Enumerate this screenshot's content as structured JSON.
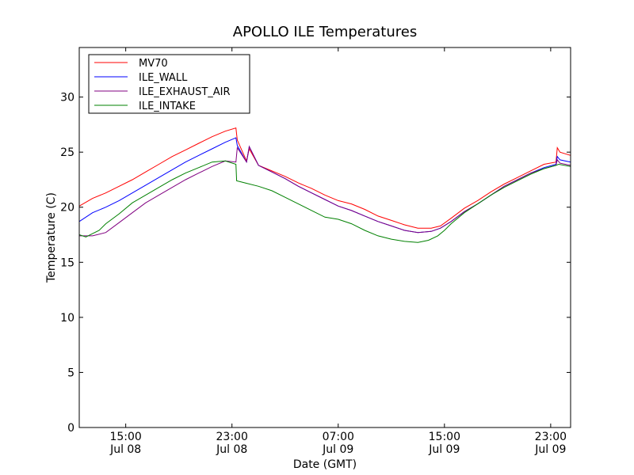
{
  "chart_data": {
    "type": "line",
    "title": "APOLLO ILE Temperatures",
    "xlabel": "Date (GMT)",
    "ylabel": "Temperature (C)",
    "x_unit": "hours since Jul 08 11:00 GMT",
    "xlim": [
      0,
      37
    ],
    "ylim": [
      0,
      34.5
    ],
    "y_ticks": [
      0,
      5,
      10,
      15,
      20,
      25,
      30
    ],
    "x_ticks": [
      {
        "x": 3.5,
        "time": "15:00",
        "date": "Jul 08"
      },
      {
        "x": 11.5,
        "time": "23:00",
        "date": "Jul 08"
      },
      {
        "x": 19.5,
        "time": "07:00",
        "date": "Jul 09"
      },
      {
        "x": 27.5,
        "time": "15:00",
        "date": "Jul 09"
      },
      {
        "x": 35.5,
        "time": "23:00",
        "date": "Jul 09"
      }
    ],
    "legend_position": "top-left",
    "series": [
      {
        "name": "MV70",
        "color": "#ff0000",
        "x": [
          0,
          1,
          2,
          3,
          4,
          5,
          6,
          7,
          8,
          9,
          10,
          11,
          11.8,
          11.9,
          12.6,
          12.8,
          13.5,
          14.5,
          15.5,
          16.5,
          17.5,
          18.5,
          19.5,
          20.5,
          21.5,
          22.5,
          23.5,
          24.5,
          25.5,
          26.5,
          27.2,
          28,
          29,
          30,
          31,
          32,
          33,
          34,
          35,
          35.9,
          36.0,
          36.2,
          37
        ],
        "values": [
          20.1,
          20.8,
          21.3,
          21.9,
          22.5,
          23.2,
          23.9,
          24.6,
          25.2,
          25.8,
          26.4,
          26.9,
          27.2,
          26.1,
          24.2,
          25.3,
          23.8,
          23.3,
          22.8,
          22.2,
          21.7,
          21.1,
          20.6,
          20.3,
          19.8,
          19.2,
          18.8,
          18.4,
          18.1,
          18.1,
          18.3,
          19.0,
          19.9,
          20.6,
          21.4,
          22.1,
          22.7,
          23.3,
          23.9,
          24.1,
          25.4,
          25.0,
          24.7
        ]
      },
      {
        "name": "ILE_WALL",
        "color": "#0000ff",
        "x": [
          0,
          1,
          2,
          3,
          4,
          5,
          6,
          7,
          8,
          9,
          10,
          11,
          11.8,
          11.9,
          12.6,
          12.8,
          13.5,
          14.5,
          15.5,
          16.5,
          17.5,
          18.5,
          19.5,
          20.5,
          21.5,
          22.5,
          23.5,
          24.5,
          25.5,
          26.5,
          27.2,
          28,
          29,
          30,
          31,
          32,
          33,
          34,
          35,
          35.9,
          36.0,
          36.2,
          37
        ],
        "values": [
          18.7,
          19.5,
          20.0,
          20.6,
          21.3,
          22.0,
          22.7,
          23.4,
          24.1,
          24.7,
          25.3,
          25.9,
          26.3,
          25.6,
          24.1,
          25.5,
          23.8,
          23.2,
          22.6,
          21.9,
          21.3,
          20.7,
          20.1,
          19.7,
          19.2,
          18.7,
          18.3,
          17.9,
          17.7,
          17.8,
          18.1,
          18.7,
          19.6,
          20.3,
          21.1,
          21.9,
          22.5,
          23.1,
          23.6,
          23.9,
          24.6,
          24.3,
          24.1
        ]
      },
      {
        "name": "ILE_EXHAUST_AIR",
        "color": "#800080",
        "x": [
          0,
          1,
          2,
          3,
          4,
          5,
          6,
          7,
          8,
          9,
          10,
          11,
          11.8,
          11.9,
          12.6,
          12.8,
          13.5,
          14.5,
          15.5,
          16.5,
          17.5,
          18.5,
          19.5,
          20.5,
          21.5,
          22.5,
          23.5,
          24.5,
          25.5,
          26.5,
          27.2,
          28,
          29,
          30,
          31,
          32,
          33,
          34,
          35,
          35.9,
          36.0,
          36.2,
          37
        ],
        "values": [
          17.4,
          17.4,
          17.7,
          18.6,
          19.5,
          20.4,
          21.1,
          21.8,
          22.5,
          23.1,
          23.7,
          24.2,
          24.1,
          25.4,
          24.1,
          25.5,
          23.8,
          23.2,
          22.6,
          21.9,
          21.3,
          20.7,
          20.1,
          19.7,
          19.2,
          18.7,
          18.3,
          17.9,
          17.7,
          17.8,
          18.1,
          18.7,
          19.6,
          20.3,
          21.1,
          21.9,
          22.5,
          23.1,
          23.5,
          23.8,
          24.3,
          24.0,
          23.8
        ]
      },
      {
        "name": "ILE_INTAKE",
        "color": "#008000",
        "x": [
          0,
          0.5,
          1,
          1.5,
          2,
          3,
          4,
          5,
          6,
          7,
          8,
          9,
          10,
          11,
          11.8,
          11.85,
          12.5,
          13.5,
          14.5,
          15.5,
          16.5,
          17.5,
          18.5,
          19.5,
          20.5,
          21.5,
          22.5,
          23.5,
          24.5,
          25.5,
          26.3,
          27,
          27.5,
          28,
          29,
          30,
          31,
          32,
          33,
          34,
          35,
          35.9,
          36.1,
          37
        ],
        "values": [
          17.5,
          17.3,
          17.6,
          17.9,
          18.5,
          19.4,
          20.4,
          21.1,
          21.8,
          22.5,
          23.1,
          23.6,
          24.1,
          24.2,
          23.9,
          22.4,
          22.2,
          21.9,
          21.5,
          20.9,
          20.3,
          19.7,
          19.1,
          18.9,
          18.5,
          17.9,
          17.4,
          17.1,
          16.9,
          16.8,
          17.0,
          17.4,
          17.9,
          18.5,
          19.5,
          20.3,
          21.1,
          21.8,
          22.4,
          23.0,
          23.5,
          23.8,
          23.9,
          23.7
        ]
      }
    ]
  }
}
